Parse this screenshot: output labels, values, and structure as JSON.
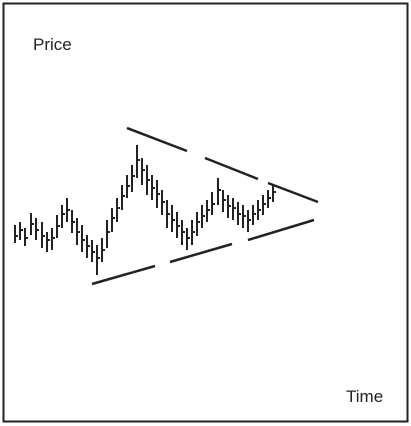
{
  "y_axis_label": "Price",
  "x_axis_label": "Time"
}
